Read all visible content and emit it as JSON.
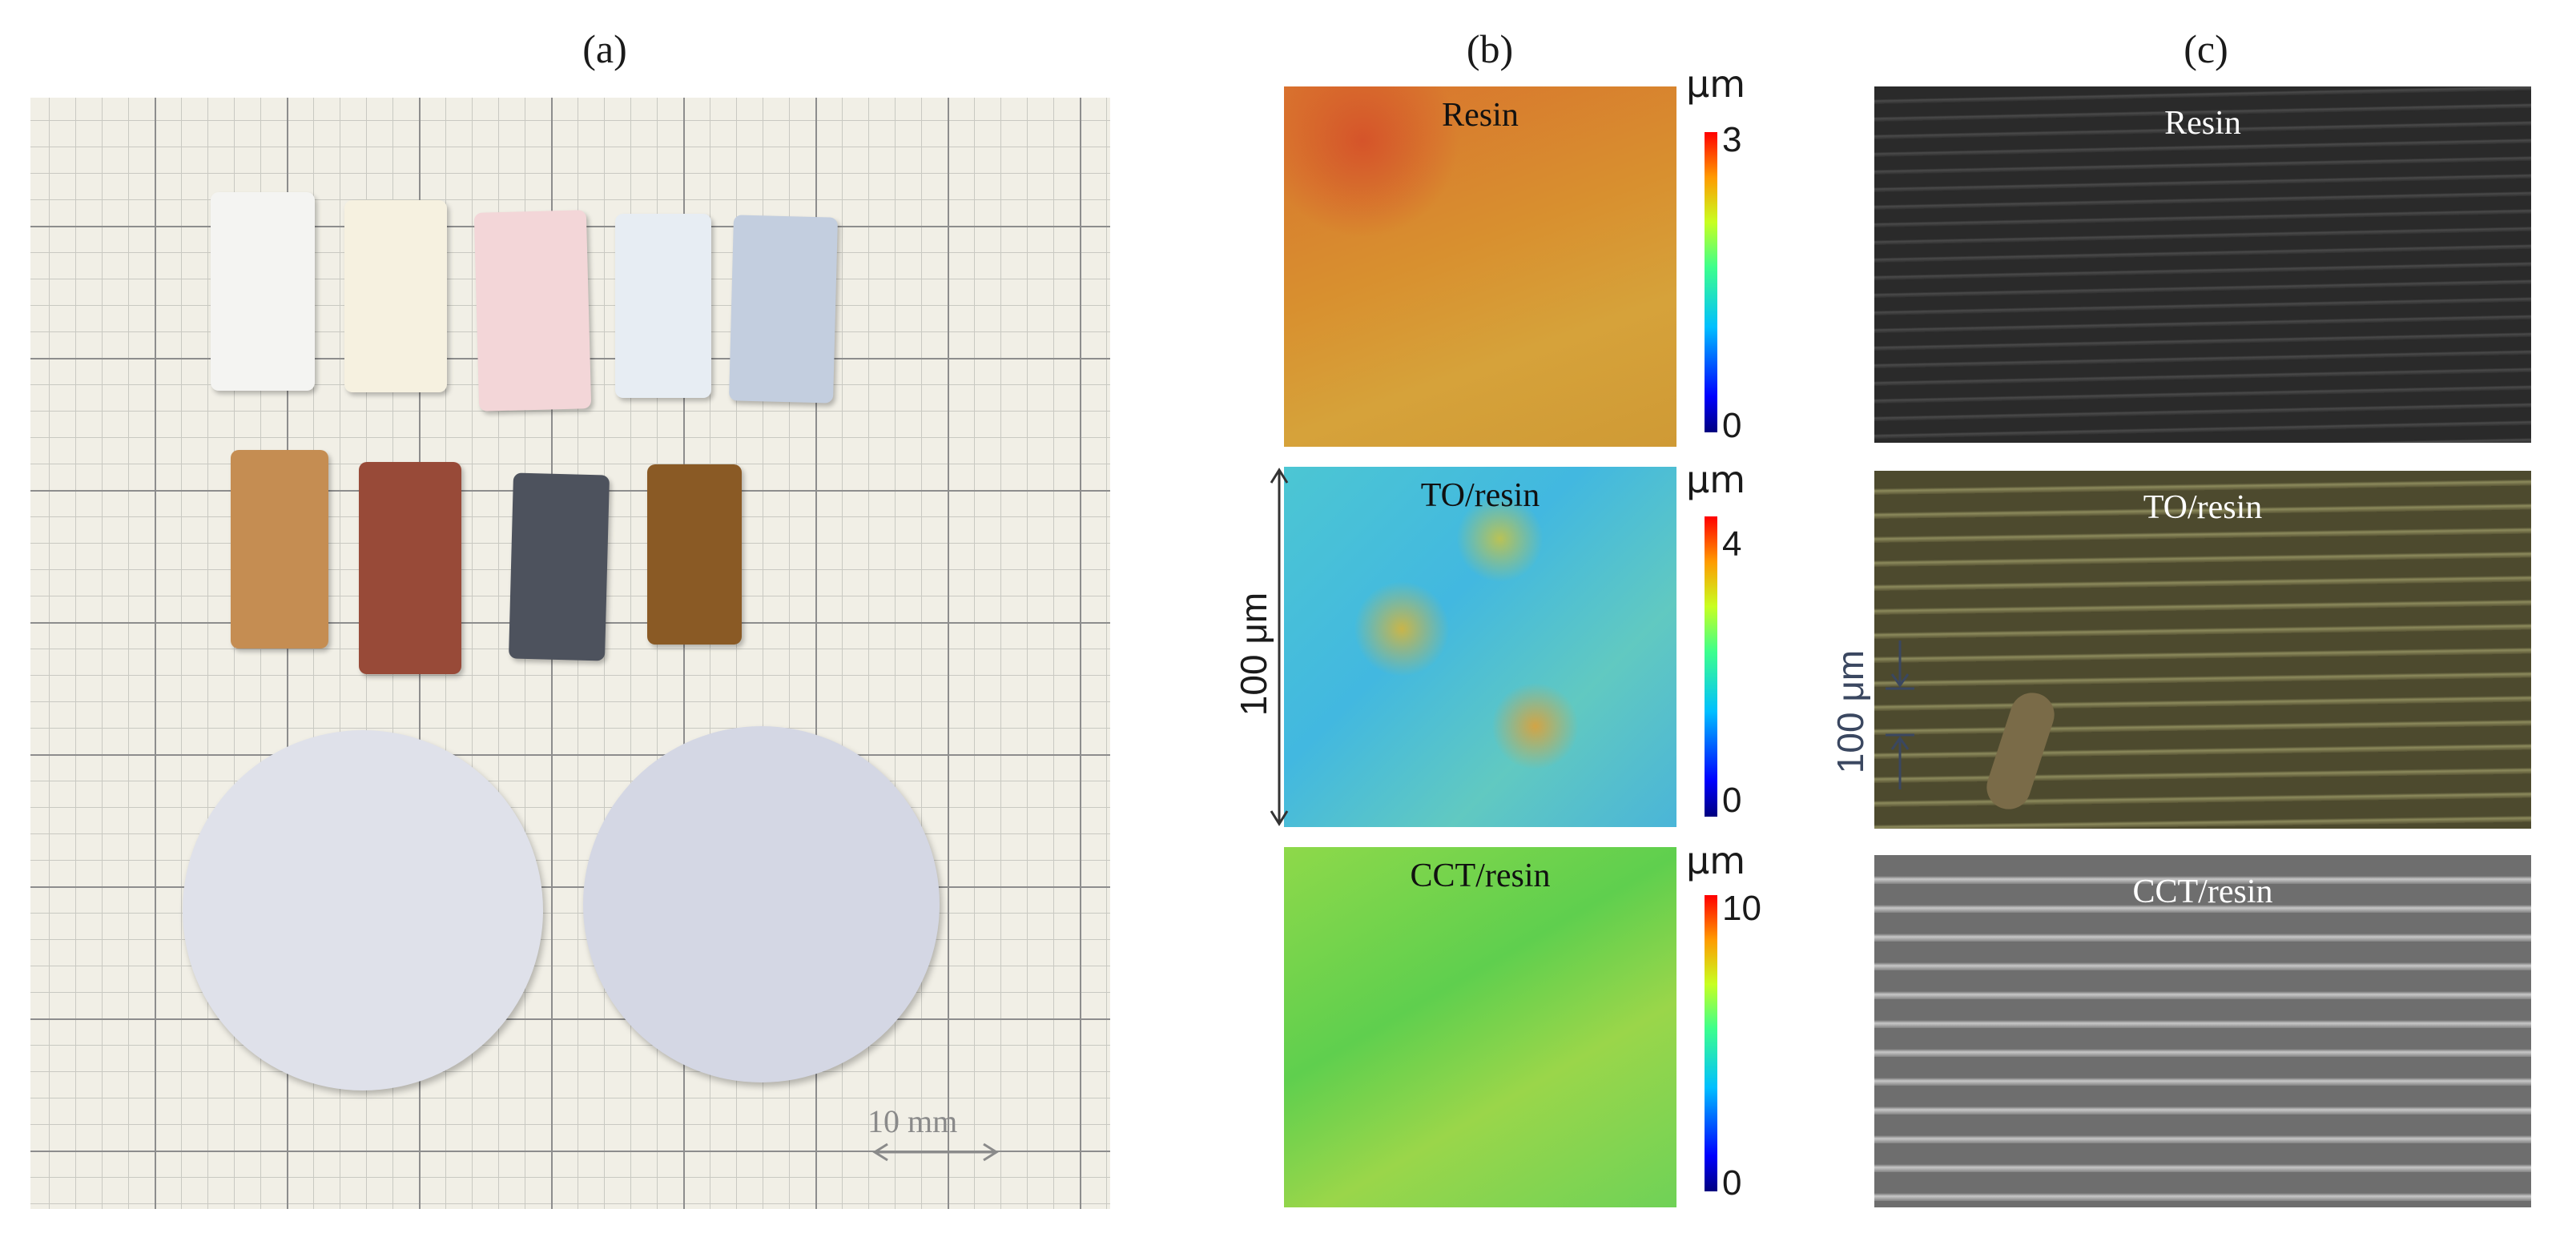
{
  "figure": {
    "panel_a": {
      "label": "(a)",
      "scale_bar_label": "10 mm",
      "sample_colors": {
        "row1": [
          "#f4f4f2",
          "#f6f1e0",
          "#f3d6d8",
          "#e7edf3",
          "#c3cedf"
        ],
        "row2": [
          "#c58d52",
          "#984a38",
          "#4d525d",
          "#8a5a25"
        ],
        "disks": [
          "#dfe1ea",
          "#d4d7e4"
        ]
      }
    },
    "panel_b": {
      "label": "(b)",
      "maps": [
        {
          "title": "Resin",
          "unit": "μm",
          "scale_max": "3",
          "scale_min": "0"
        },
        {
          "title": "TO/resin",
          "unit": "μm",
          "scale_max": "4",
          "scale_min": "0"
        },
        {
          "title": "CCT/resin",
          "unit": "μm",
          "scale_max": "10",
          "scale_min": "0"
        }
      ],
      "scale_label": "100 μm"
    },
    "panel_c": {
      "label": "(c)",
      "images": [
        {
          "title": "Resin"
        },
        {
          "title": "TO/resin"
        },
        {
          "title": "CCT/resin"
        }
      ],
      "scale_label": "100 μm"
    }
  }
}
